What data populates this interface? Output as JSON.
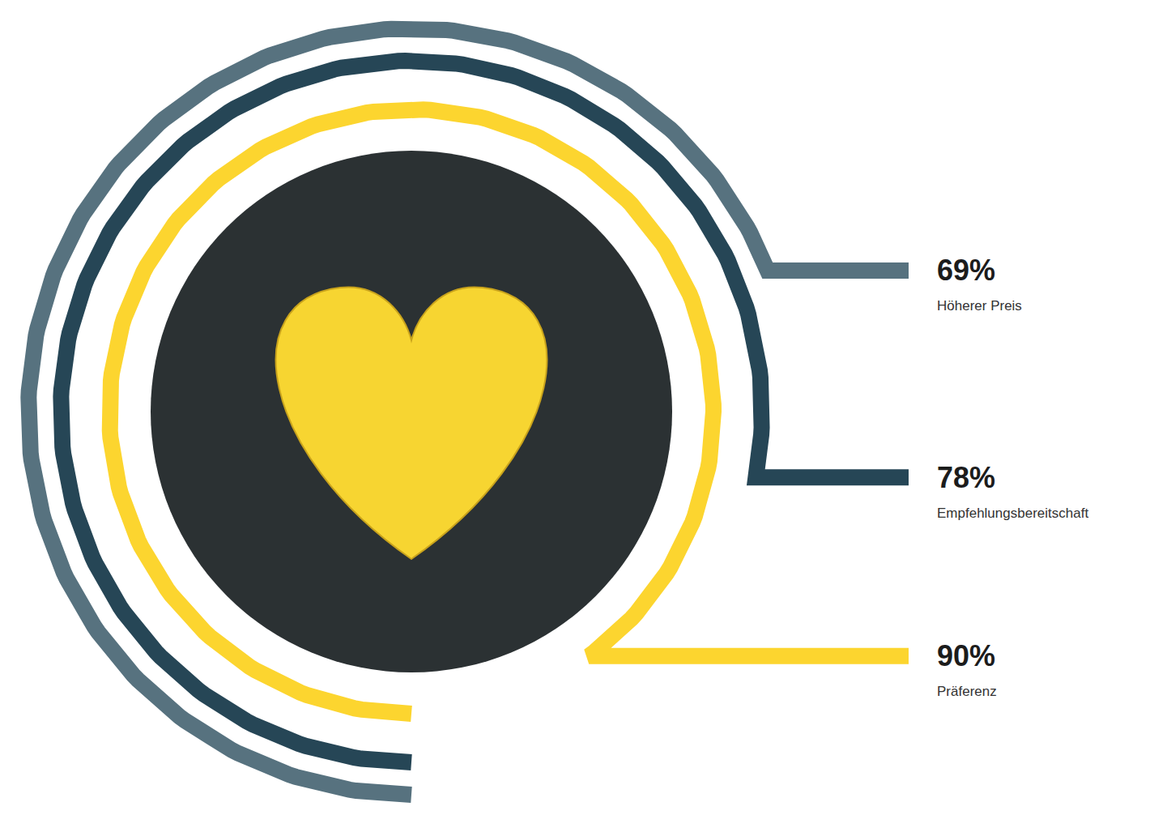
{
  "chart_data": {
    "type": "radial_bar",
    "categories": [
      "Höherer Preis",
      "Empfehlungsbereitschaft",
      "Präferenz"
    ],
    "values": [
      69,
      78,
      90
    ],
    "value_labels": [
      "69%",
      "78%",
      "90%"
    ],
    "colors": [
      "#57727f",
      "#264656",
      "#fcd52f"
    ],
    "ylim": [
      0,
      100
    ],
    "data_labels": true,
    "tick_labels": false
  }
}
